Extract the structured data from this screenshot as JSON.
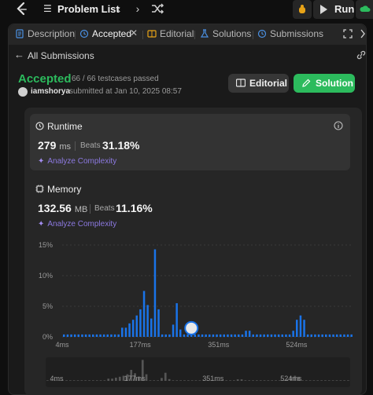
{
  "topbar": {
    "title": "Problem List",
    "run_label": "Run"
  },
  "tabs": [
    {
      "label": "Description",
      "icon": "description-icon"
    },
    {
      "label": "Accepted",
      "icon": "history-icon"
    },
    {
      "label": "Editorial",
      "icon": "book-icon"
    },
    {
      "label": "Solutions",
      "icon": "flask-icon"
    },
    {
      "label": "Submissions",
      "icon": "history-icon"
    }
  ],
  "submission": {
    "back_label": "All Submissions",
    "status": "Accepted",
    "cases": "66 / 66 testcases passed",
    "username": "iamshorya",
    "submitted": "submitted at Jan 10, 2025 08:57",
    "editorial_label": "Editorial",
    "solution_label": "Solution"
  },
  "runtime": {
    "title": "Runtime",
    "value": "279",
    "unit": "ms",
    "beats_label": "Beats",
    "beats": "31.18%",
    "analyze": "Analyze Complexity"
  },
  "memory": {
    "title": "Memory",
    "value": "132.56",
    "unit": "MB",
    "beats_label": "Beats",
    "beats": "11.16%",
    "analyze": "Analyze Complexity"
  },
  "colors": {
    "accent_green": "#2cbb5d",
    "bar_blue": "#1a73e8",
    "analyze_purple": "#8c79e0"
  },
  "chart_data": {
    "type": "bar",
    "yticks": [
      "15%",
      "10%",
      "5%",
      "0%"
    ],
    "ylim": [
      0,
      15
    ],
    "xticks": [
      "4ms",
      "177ms",
      "351ms",
      "524ms"
    ],
    "xrange": [
      4,
      650
    ],
    "values": [
      0.4,
      0.4,
      0.4,
      0.4,
      0.4,
      0.4,
      0.4,
      0.4,
      0.4,
      0.4,
      0.4,
      0.4,
      0.4,
      0.4,
      0.4,
      0.4,
      1.5,
      1.5,
      2.2,
      2.8,
      3.5,
      4.5,
      7.5,
      5.2,
      3.0,
      14.3,
      4.5,
      0.4,
      0.4,
      0.4,
      2.0,
      5.5,
      1.2,
      0.4,
      0.4,
      0.4,
      0.4,
      0.4,
      0.4,
      0.4,
      0.4,
      0.4,
      0.4,
      0.4,
      0.4,
      0.4,
      0.4,
      0.4,
      0.4,
      0.4,
      1.0,
      1.0,
      0.4,
      0.4,
      0.4,
      0.4,
      0.4,
      0.4,
      0.4,
      0.4,
      0.4,
      0.4,
      0.4,
      1.0,
      2.8,
      3.5,
      2.8,
      0.4,
      0.4,
      0.4,
      0.4,
      0.4,
      0.4,
      0.4,
      0.4,
      0.4,
      0.4,
      0.4,
      0.4,
      0.4
    ],
    "marker_index": 35
  }
}
